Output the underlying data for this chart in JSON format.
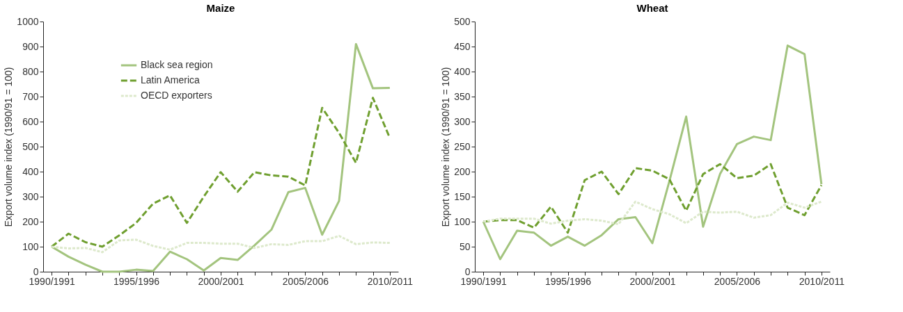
{
  "chart_data": [
    {
      "type": "line",
      "title": "Maize",
      "ylabel": "Export volume index (1990/91 = 100)",
      "categories": [
        "1990/1991",
        null,
        null,
        null,
        null,
        "1995/1996",
        null,
        null,
        null,
        null,
        "2000/2001",
        null,
        null,
        null,
        null,
        "2005/2006",
        null,
        null,
        null,
        null,
        "2010/2011"
      ],
      "series": [
        {
          "name": "Black sea region",
          "color": "#a3c47e",
          "line_style": "solid",
          "values": [
            100,
            60,
            28,
            0,
            0,
            8,
            3,
            80,
            50,
            5,
            55,
            47,
            105,
            168,
            318,
            335,
            148,
            283,
            910,
            733,
            735
          ]
        },
        {
          "name": "Latin America",
          "color": "#6f9f2f",
          "line_style": "dashed",
          "values": [
            100,
            152,
            118,
            100,
            145,
            195,
            272,
            305,
            195,
            300,
            398,
            320,
            398,
            385,
            380,
            345,
            655,
            555,
            435,
            695,
            535
          ]
        },
        {
          "name": "OECD exporters",
          "color": "#dde9cc",
          "line_style": "dotted",
          "values": [
            100,
            93,
            95,
            78,
            125,
            128,
            103,
            88,
            115,
            115,
            112,
            112,
            95,
            110,
            107,
            122,
            122,
            143,
            110,
            117,
            115
          ]
        }
      ],
      "ylim": [
        0,
        1000
      ],
      "yticks": [
        0,
        100,
        200,
        300,
        400,
        500,
        600,
        700,
        800,
        900,
        1000
      ],
      "grid": false,
      "legend": "top left",
      "marker": "none"
    },
    {
      "type": "line",
      "title": "Wheat",
      "ylabel": "Export volume index (1990/91 = 100)",
      "categories": [
        "1990/1991",
        null,
        null,
        null,
        null,
        "1995/1996",
        null,
        null,
        null,
        null,
        "2000/2001",
        null,
        null,
        null,
        null,
        "2005/2006",
        null,
        null,
        null,
        null,
        "2010/2011"
      ],
      "series": [
        {
          "name": "Black sea region",
          "color": "#a3c47e",
          "line_style": "solid",
          "values": [
            100,
            25,
            82,
            78,
            52,
            70,
            52,
            73,
            105,
            109,
            57,
            180,
            310,
            90,
            195,
            255,
            270,
            263,
            452,
            435,
            175
          ]
        },
        {
          "name": "Latin America",
          "color": "#6f9f2f",
          "line_style": "dashed",
          "values": [
            100,
            103,
            103,
            88,
            130,
            78,
            183,
            200,
            155,
            207,
            202,
            185,
            122,
            195,
            215,
            187,
            192,
            215,
            128,
            113,
            173
          ]
        },
        {
          "name": "OECD exporters",
          "color": "#dde9cc",
          "line_style": "dotted",
          "values": [
            100,
            106,
            106,
            106,
            96,
            102,
            105,
            102,
            95,
            140,
            125,
            115,
            97,
            120,
            118,
            120,
            108,
            113,
            138,
            128,
            140
          ]
        }
      ],
      "ylim": [
        0,
        500
      ],
      "yticks": [
        0,
        50,
        100,
        150,
        200,
        250,
        300,
        350,
        400,
        450,
        500
      ],
      "grid": false,
      "legend": "top left",
      "marker": "none"
    }
  ]
}
